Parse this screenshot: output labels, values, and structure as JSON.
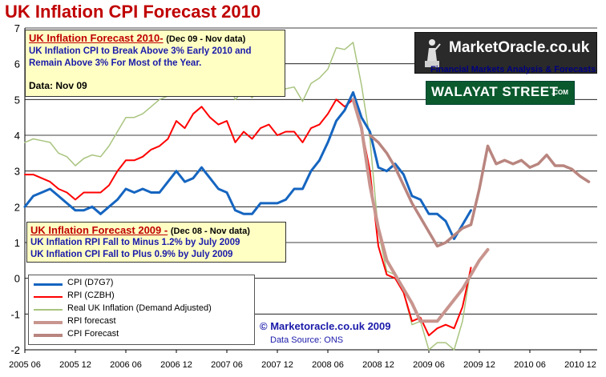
{
  "chart_data": {
    "type": "line",
    "title": "UK Inflation CPI Forecast 2010",
    "xlabel": "",
    "ylabel": "",
    "ylim": [
      -2,
      7
    ],
    "yticks": [
      "-2",
      "-1",
      "0",
      "1",
      "2",
      "3",
      "4",
      "5",
      "6",
      "7"
    ],
    "xticks": [
      {
        "label": "2005 06",
        "date": "2005-06"
      },
      {
        "label": "2005 12",
        "date": "2005-12"
      },
      {
        "label": "2006 06",
        "date": "2006-06"
      },
      {
        "label": "2006 12",
        "date": "2006-12"
      },
      {
        "label": "2007 06",
        "date": "2007-06"
      },
      {
        "label": "2007 12",
        "date": "2007-12"
      },
      {
        "label": "2008 06",
        "date": "2008-06"
      },
      {
        "label": "2008 12",
        "date": "2008-12"
      },
      {
        "label": "2009 06",
        "date": "2009-06"
      },
      {
        "label": "2009 12",
        "date": "2009-12"
      },
      {
        "label": "2010 06",
        "date": "2010-06"
      },
      {
        "label": "2010 12",
        "date": "2010-12"
      }
    ],
    "grid": "horizontal",
    "series": [
      {
        "name": "CPI (D7G7)",
        "color": "#1565c0",
        "width": 3,
        "points": [
          [
            "2005-06",
            2.0
          ],
          [
            "2005-07",
            2.3
          ],
          [
            "2005-08",
            2.4
          ],
          [
            "2005-09",
            2.5
          ],
          [
            "2005-10",
            2.3
          ],
          [
            "2005-11",
            2.1
          ],
          [
            "2005-12",
            1.9
          ],
          [
            "2006-01",
            1.9
          ],
          [
            "2006-02",
            2.0
          ],
          [
            "2006-03",
            1.8
          ],
          [
            "2006-04",
            2.0
          ],
          [
            "2006-05",
            2.2
          ],
          [
            "2006-06",
            2.5
          ],
          [
            "2006-07",
            2.4
          ],
          [
            "2006-08",
            2.5
          ],
          [
            "2006-09",
            2.4
          ],
          [
            "2006-10",
            2.4
          ],
          [
            "2006-11",
            2.7
          ],
          [
            "2006-12",
            3.0
          ],
          [
            "2007-01",
            2.7
          ],
          [
            "2007-02",
            2.8
          ],
          [
            "2007-03",
            3.1
          ],
          [
            "2007-04",
            2.8
          ],
          [
            "2007-05",
            2.5
          ],
          [
            "2007-06",
            2.4
          ],
          [
            "2007-07",
            1.9
          ],
          [
            "2007-08",
            1.8
          ],
          [
            "2007-09",
            1.8
          ],
          [
            "2007-10",
            2.1
          ],
          [
            "2007-11",
            2.1
          ],
          [
            "2007-12",
            2.1
          ],
          [
            "2008-01",
            2.2
          ],
          [
            "2008-02",
            2.5
          ],
          [
            "2008-03",
            2.5
          ],
          [
            "2008-04",
            3.0
          ],
          [
            "2008-05",
            3.3
          ],
          [
            "2008-06",
            3.8
          ],
          [
            "2008-07",
            4.4
          ],
          [
            "2008-08",
            4.7
          ],
          [
            "2008-09",
            5.2
          ],
          [
            "2008-10",
            4.5
          ],
          [
            "2008-11",
            4.1
          ],
          [
            "2008-12",
            3.1
          ],
          [
            "2009-01",
            3.0
          ],
          [
            "2009-02",
            3.2
          ],
          [
            "2009-03",
            2.9
          ],
          [
            "2009-04",
            2.3
          ],
          [
            "2009-05",
            2.2
          ],
          [
            "2009-06",
            1.8
          ],
          [
            "2009-07",
            1.8
          ],
          [
            "2009-08",
            1.6
          ],
          [
            "2009-09",
            1.1
          ],
          [
            "2009-10",
            1.5
          ],
          [
            "2009-11",
            1.9
          ]
        ]
      },
      {
        "name": "RPI (CZBH)",
        "color": "#ff0000",
        "width": 2,
        "points": [
          [
            "2005-06",
            2.9
          ],
          [
            "2005-07",
            2.9
          ],
          [
            "2005-08",
            2.8
          ],
          [
            "2005-09",
            2.7
          ],
          [
            "2005-10",
            2.5
          ],
          [
            "2005-11",
            2.4
          ],
          [
            "2005-12",
            2.2
          ],
          [
            "2006-01",
            2.4
          ],
          [
            "2006-02",
            2.4
          ],
          [
            "2006-03",
            2.4
          ],
          [
            "2006-04",
            2.6
          ],
          [
            "2006-05",
            3.0
          ],
          [
            "2006-06",
            3.3
          ],
          [
            "2006-07",
            3.3
          ],
          [
            "2006-08",
            3.4
          ],
          [
            "2006-09",
            3.6
          ],
          [
            "2006-10",
            3.7
          ],
          [
            "2006-11",
            3.9
          ],
          [
            "2006-12",
            4.4
          ],
          [
            "2007-01",
            4.2
          ],
          [
            "2007-02",
            4.6
          ],
          [
            "2007-03",
            4.8
          ],
          [
            "2007-04",
            4.5
          ],
          [
            "2007-05",
            4.3
          ],
          [
            "2007-06",
            4.4
          ],
          [
            "2007-07",
            3.8
          ],
          [
            "2007-08",
            4.1
          ],
          [
            "2007-09",
            3.9
          ],
          [
            "2007-10",
            4.2
          ],
          [
            "2007-11",
            4.3
          ],
          [
            "2007-12",
            4.0
          ],
          [
            "2008-01",
            4.1
          ],
          [
            "2008-02",
            4.1
          ],
          [
            "2008-03",
            3.8
          ],
          [
            "2008-04",
            4.2
          ],
          [
            "2008-05",
            4.3
          ],
          [
            "2008-06",
            4.6
          ],
          [
            "2008-07",
            5.0
          ],
          [
            "2008-08",
            4.8
          ],
          [
            "2008-09",
            5.0
          ],
          [
            "2008-10",
            4.2
          ],
          [
            "2008-11",
            3.0
          ],
          [
            "2008-12",
            0.9
          ],
          [
            "2009-01",
            0.1
          ],
          [
            "2009-02",
            0.0
          ],
          [
            "2009-03",
            -0.4
          ],
          [
            "2009-04",
            -1.2
          ],
          [
            "2009-05",
            -1.1
          ],
          [
            "2009-06",
            -1.6
          ],
          [
            "2009-07",
            -1.4
          ],
          [
            "2009-08",
            -1.3
          ],
          [
            "2009-09",
            -1.4
          ],
          [
            "2009-10",
            -0.8
          ],
          [
            "2009-11",
            0.3
          ]
        ]
      },
      {
        "name": "Real UK Inflation (Demand Adjusted)",
        "color": "#a9c47f",
        "width": 1.5,
        "points": [
          [
            "2005-06",
            3.8
          ],
          [
            "2005-07",
            3.9
          ],
          [
            "2005-08",
            3.85
          ],
          [
            "2005-09",
            3.8
          ],
          [
            "2005-10",
            3.5
          ],
          [
            "2005-11",
            3.4
          ],
          [
            "2005-12",
            3.15
          ],
          [
            "2006-01",
            3.35
          ],
          [
            "2006-02",
            3.45
          ],
          [
            "2006-03",
            3.4
          ],
          [
            "2006-04",
            3.7
          ],
          [
            "2006-05",
            4.1
          ],
          [
            "2006-06",
            4.5
          ],
          [
            "2006-07",
            4.5
          ],
          [
            "2006-08",
            4.6
          ],
          [
            "2006-09",
            4.8
          ],
          [
            "2006-10",
            5.0
          ],
          [
            "2006-11",
            5.1
          ],
          [
            "2006-12",
            5.6
          ],
          [
            "2007-01",
            5.35
          ],
          [
            "2007-02",
            5.7
          ],
          [
            "2007-03",
            6.0
          ],
          [
            "2007-04",
            5.6
          ],
          [
            "2007-05",
            5.5
          ],
          [
            "2007-06",
            5.6
          ],
          [
            "2007-07",
            5.0
          ],
          [
            "2007-08",
            5.25
          ],
          [
            "2007-09",
            5.05
          ],
          [
            "2007-10",
            5.35
          ],
          [
            "2007-11",
            5.45
          ],
          [
            "2007-12",
            5.2
          ],
          [
            "2008-01",
            5.3
          ],
          [
            "2008-02",
            5.35
          ],
          [
            "2008-03",
            4.95
          ],
          [
            "2008-04",
            5.45
          ],
          [
            "2008-05",
            5.6
          ],
          [
            "2008-06",
            5.85
          ],
          [
            "2008-07",
            6.45
          ],
          [
            "2008-08",
            6.4
          ],
          [
            "2008-09",
            6.6
          ],
          [
            "2008-10",
            5.4
          ],
          [
            "2008-11",
            3.9
          ],
          [
            "2008-12",
            1.3
          ],
          [
            "2009-01",
            0.2
          ],
          [
            "2009-02",
            0.1
          ],
          [
            "2009-03",
            -0.4
          ],
          [
            "2009-04",
            -1.3
          ],
          [
            "2009-05",
            -1.2
          ],
          [
            "2009-06",
            -2.0
          ],
          [
            "2009-07",
            -1.8
          ],
          [
            "2009-08",
            -1.8
          ],
          [
            "2009-09",
            -2.0
          ],
          [
            "2009-10",
            -1.2
          ],
          [
            "2009-11",
            0.3
          ]
        ]
      },
      {
        "name": "RPI forecast",
        "color": "#c8958e",
        "width": 4,
        "points": [
          [
            "2008-09",
            5.0
          ],
          [
            "2008-10",
            4.2
          ],
          [
            "2008-11",
            2.6
          ],
          [
            "2008-12",
            1.4
          ],
          [
            "2009-01",
            0.5
          ],
          [
            "2009-02",
            0.1
          ],
          [
            "2009-03",
            -0.3
          ],
          [
            "2009-04",
            -0.7
          ],
          [
            "2009-05",
            -1.2
          ],
          [
            "2009-06",
            -1.2
          ],
          [
            "2009-07",
            -1.2
          ],
          [
            "2009-08",
            -0.9
          ],
          [
            "2009-09",
            -0.6
          ],
          [
            "2009-10",
            -0.3
          ],
          [
            "2009-11",
            0.1
          ],
          [
            "2009-12",
            0.5
          ],
          [
            "2010-01",
            0.8
          ]
        ]
      },
      {
        "name": "CPI Forecast",
        "color": "#b9857f",
        "width": 3.5,
        "points": [
          [
            "2008-11",
            4.0
          ],
          [
            "2008-12",
            3.8
          ],
          [
            "2009-01",
            3.5
          ],
          [
            "2009-02",
            3.1
          ],
          [
            "2009-03",
            2.6
          ],
          [
            "2009-04",
            2.1
          ],
          [
            "2009-05",
            1.7
          ],
          [
            "2009-06",
            1.3
          ],
          [
            "2009-07",
            0.9
          ],
          [
            "2009-08",
            1.0
          ],
          [
            "2009-09",
            1.2
          ],
          [
            "2009-10",
            1.4
          ],
          [
            "2009-11",
            1.5
          ],
          [
            "2009-12",
            2.5
          ],
          [
            "2010-01",
            3.7
          ],
          [
            "2010-02",
            3.2
          ],
          [
            "2010-03",
            3.3
          ],
          [
            "2010-04",
            3.2
          ],
          [
            "2010-05",
            3.3
          ],
          [
            "2010-06",
            3.1
          ],
          [
            "2010-07",
            3.2
          ],
          [
            "2010-08",
            3.45
          ],
          [
            "2010-09",
            3.15
          ],
          [
            "2010-10",
            3.15
          ],
          [
            "2010-11",
            3.05
          ],
          [
            "2010-12",
            2.85
          ],
          [
            "2011-01",
            2.7
          ]
        ]
      }
    ]
  },
  "title": "UK Inflation CPI Forecast 2010",
  "note_2010": {
    "heading": "UK Inflation Forecast 2010-",
    "heading_suffix": "(Dec 09 - Nov data)",
    "line1": "UK Inflation CPI to Break Above 3% Early 2010 and",
    "line2": "Remain Above 3% For Most of the Year.",
    "data_label": "Data:  Nov 09"
  },
  "note_2009": {
    "heading": "UK Inflation Forecast 2009 -",
    "heading_suffix": "(Dec 08 - Nov data)",
    "line1": "UK Inflation RPI Fall to  Minus 1.2% by July 2009",
    "line2": "UK Inflation CPI Fall to Plus 0.9% by July 2009"
  },
  "logos": {
    "marketoracle": "MarketOracle.co.uk",
    "tagline": "Financial Markets Analysis & Forecasts",
    "walayat": "WALAYAT STREET",
    "walayat_suffix": ".COM"
  },
  "copyright": "© Marketoracle.co.uk  2009",
  "source": "Data Source: ONS"
}
